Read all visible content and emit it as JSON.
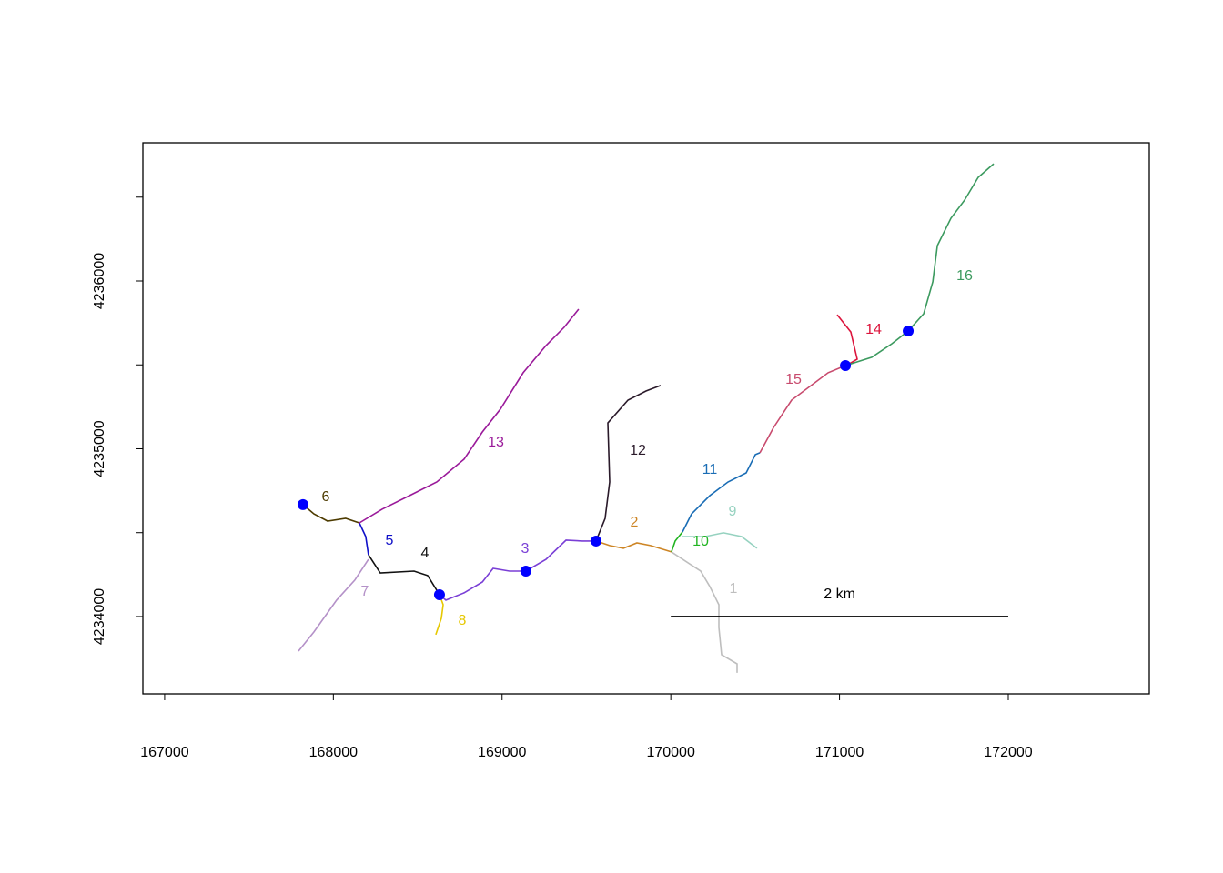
{
  "chart_data": {
    "type": "network",
    "xlim": [
      166871,
      172836
    ],
    "ylim": [
      4233539,
      4236824
    ],
    "xticks": [
      167000,
      168000,
      169000,
      170000,
      171000,
      172000
    ],
    "yticks": [
      4234000,
      4235000,
      4236000
    ],
    "yminor_ticks": [
      4234500,
      4235500,
      4236500
    ],
    "series": [
      {
        "name": "1",
        "color": "#bebebe",
        "x": [
          170004,
          170177,
          170231,
          170285,
          170285,
          170301,
          170393,
          170393
        ],
        "values": [
          4234385,
          4234271,
          4234179,
          4234070,
          4233935,
          4233772,
          4233718,
          4233664
        ]
      },
      {
        "name": "2",
        "color": "#cd8525",
        "x": [
          169557,
          169638,
          169719,
          169799,
          169880,
          170004
        ],
        "values": [
          4234450,
          4234423,
          4234407,
          4234439,
          4234423,
          4234385
        ]
      },
      {
        "name": "3",
        "color": "#7a3fd6",
        "x": [
          168629,
          168667,
          168775,
          168883,
          168947,
          169044,
          169141,
          169260,
          169379,
          169476,
          169557
        ],
        "values": [
          4234130,
          4234098,
          4234141,
          4234206,
          4234287,
          4234271,
          4234271,
          4234341,
          4234455,
          4234450,
          4234450
        ]
      },
      {
        "name": "4",
        "color": "#111111",
        "x": [
          168208,
          168278,
          168478,
          168559,
          168629
        ],
        "values": [
          4234368,
          4234260,
          4234271,
          4234244,
          4234130
        ]
      },
      {
        "name": "5",
        "color": "#1010c8",
        "x": [
          168154,
          168192,
          168208
        ],
        "values": [
          4234558,
          4234477,
          4234368
        ]
      },
      {
        "name": "6",
        "color": "#4d3b00",
        "x": [
          167820,
          167885,
          167966,
          168073,
          168154
        ],
        "values": [
          4234667,
          4234612,
          4234569,
          4234585,
          4234558
        ]
      },
      {
        "name": "7",
        "color": "#b491c8",
        "x": [
          167793,
          167885,
          168019,
          168127,
          168208
        ],
        "values": [
          4233794,
          4233908,
          4234098,
          4234217,
          4234341
        ]
      },
      {
        "name": "8",
        "color": "#e6c800",
        "x": [
          168607,
          168640,
          168651,
          168629
        ],
        "values": [
          4233892,
          4233989,
          4234070,
          4234130
        ]
      },
      {
        "name": "9",
        "color": "#96d2c0",
        "x": [
          170069,
          170204,
          170312,
          170420,
          170511
        ],
        "values": [
          4234477,
          4234477,
          4234499,
          4234477,
          4234407
        ]
      },
      {
        "name": "10",
        "color": "#22b422",
        "x": [
          170004,
          170026,
          170069
        ],
        "values": [
          4234385,
          4234450,
          4234504
        ]
      },
      {
        "name": "11",
        "color": "#1a6db5",
        "x": [
          170069,
          170123,
          170231,
          170339,
          170447,
          170501,
          170528
        ],
        "values": [
          4234504,
          4234612,
          4234721,
          4234802,
          4234856,
          4234965,
          4234976
        ]
      },
      {
        "name": "12",
        "color": "#2a1a2a",
        "x": [
          169557,
          169611,
          169638,
          169627,
          169746,
          169853,
          169940
        ],
        "values": [
          4234450,
          4234585,
          4234802,
          4235154,
          4235290,
          4235344,
          4235377
        ]
      },
      {
        "name": "13",
        "color": "#9a1a9a",
        "x": [
          168154,
          168289,
          168451,
          168613,
          168775,
          168883,
          168990,
          169125,
          169260,
          169368,
          169454
        ],
        "values": [
          4234558,
          4234640,
          4234721,
          4234802,
          4234938,
          4235100,
          4235236,
          4235453,
          4235615,
          4235724,
          4235832
        ]
      },
      {
        "name": "14",
        "color": "#dc143c",
        "x": [
          170986,
          171067,
          171105,
          171040
        ],
        "values": [
          4235799,
          4235696,
          4235534,
          4235496
        ]
      },
      {
        "name": "15",
        "color": "#c84b6e",
        "x": [
          170528,
          170609,
          170716,
          170824,
          170932,
          171035
        ],
        "values": [
          4234976,
          4235127,
          4235290,
          4235371,
          4235453,
          4235496
        ]
      },
      {
        "name": "16",
        "color": "#3c9a5f",
        "x": [
          171035,
          171191,
          171310,
          171407,
          171499,
          171553,
          171580,
          171660,
          171741,
          171822,
          171914
        ],
        "values": [
          4235496,
          4235545,
          4235626,
          4235702,
          4235805,
          4235995,
          4236211,
          4236374,
          4236482,
          4236618,
          4236699
        ]
      }
    ],
    "points": {
      "color": "#0000ff",
      "x": [
        167820,
        168629,
        169141,
        169557,
        171035,
        171407
      ],
      "values": [
        4234667,
        4234130,
        4234271,
        4234450,
        4235496,
        4235702
      ]
    },
    "scale_bar": {
      "label": "2 km",
      "x": [
        170000,
        172000
      ],
      "y": 4234000
    }
  }
}
